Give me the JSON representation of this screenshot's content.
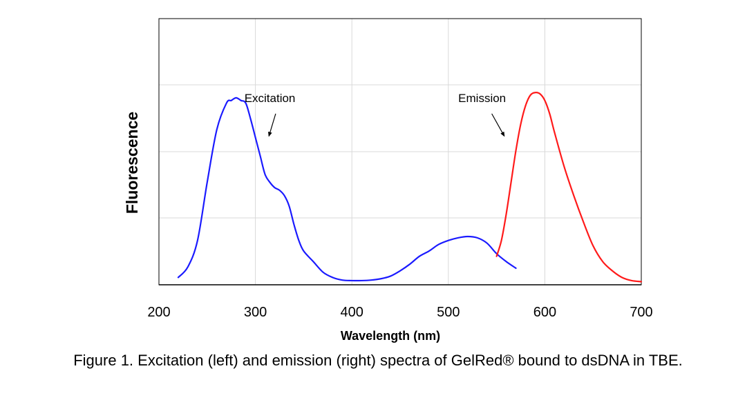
{
  "chart_data": {
    "type": "line",
    "xlabel": "Wavelength (nm)",
    "ylabel": "Fluorescence",
    "xlim": [
      200,
      700
    ],
    "ylim": [
      0,
      1.0
    ],
    "xticks": [
      200,
      300,
      400,
      500,
      600,
      700
    ],
    "ygrid_levels": [
      0.25,
      0.5,
      0.75
    ],
    "grid": true,
    "series": [
      {
        "name": "Excitation",
        "color": "#1a1aff",
        "x": [
          220,
          230,
          240,
          250,
          260,
          270,
          275,
          280,
          285,
          290,
          295,
          300,
          305,
          310,
          315,
          320,
          325,
          330,
          335,
          340,
          345,
          350,
          360,
          370,
          380,
          390,
          400,
          410,
          420,
          430,
          440,
          450,
          460,
          470,
          480,
          490,
          500,
          510,
          520,
          530,
          540,
          550,
          560,
          570
        ],
        "values": [
          0.02,
          0.06,
          0.16,
          0.38,
          0.58,
          0.68,
          0.69,
          0.7,
          0.69,
          0.68,
          0.62,
          0.55,
          0.48,
          0.41,
          0.38,
          0.36,
          0.35,
          0.33,
          0.29,
          0.22,
          0.16,
          0.12,
          0.08,
          0.04,
          0.02,
          0.01,
          0.008,
          0.008,
          0.01,
          0.015,
          0.025,
          0.045,
          0.07,
          0.1,
          0.12,
          0.145,
          0.16,
          0.17,
          0.175,
          0.17,
          0.15,
          0.11,
          0.08,
          0.055
        ]
      },
      {
        "name": "Emission",
        "color": "#ff1a1a",
        "x": [
          550,
          555,
          560,
          565,
          570,
          575,
          580,
          585,
          590,
          595,
          600,
          605,
          610,
          620,
          630,
          640,
          650,
          660,
          670,
          680,
          690,
          700
        ],
        "values": [
          0.1,
          0.16,
          0.26,
          0.38,
          0.5,
          0.6,
          0.67,
          0.71,
          0.72,
          0.715,
          0.69,
          0.64,
          0.57,
          0.44,
          0.33,
          0.23,
          0.14,
          0.08,
          0.045,
          0.02,
          0.008,
          0.004
        ]
      }
    ],
    "annotations": [
      {
        "text": "Excitation",
        "series": "Excitation",
        "label_x": 315,
        "label_y": 0.7,
        "arrow_from": [
          321,
          0.64
        ],
        "arrow_to": [
          314,
          0.555
        ]
      },
      {
        "text": "Emission",
        "series": "Emission",
        "label_x": 535,
        "label_y": 0.7,
        "arrow_from": [
          545,
          0.64
        ],
        "arrow_to": [
          558,
          0.555
        ]
      }
    ]
  },
  "caption": "Figure 1. Excitation (left) and emission (right) spectra of GelRed® bound to dsDNA in TBE."
}
